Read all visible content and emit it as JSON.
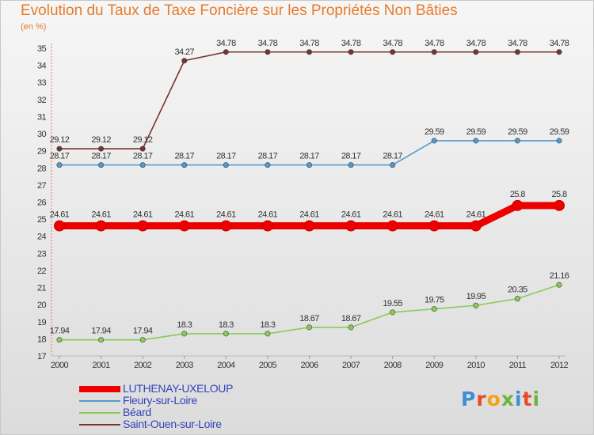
{
  "chart_data": {
    "type": "line",
    "title": "Evolution du Taux de Taxe Foncière sur les Propriétés Non Bâties",
    "ylabel": "(en %)",
    "xlabel": "",
    "categories": [
      "2000",
      "2001",
      "2002",
      "2003",
      "2004",
      "2005",
      "2006",
      "2007",
      "2008",
      "2009",
      "2010",
      "2011",
      "2012"
    ],
    "ylim": [
      17,
      35
    ],
    "yticks": [
      17,
      18,
      19,
      20,
      21,
      22,
      23,
      24,
      25,
      26,
      27,
      28,
      29,
      30,
      31,
      32,
      33,
      34,
      35
    ],
    "series": [
      {
        "name": "LUTHENAY-UXELOUP",
        "color": "#ee0000",
        "values": [
          24.61,
          24.61,
          24.61,
          24.61,
          24.61,
          24.61,
          24.61,
          24.61,
          24.61,
          24.61,
          24.61,
          25.8,
          25.8
        ],
        "labels": [
          "24.61",
          "24.61",
          "24.61",
          "24.61",
          "24.61",
          "24.61",
          "24.61",
          "24.61",
          "24.61",
          "24.61",
          "24.61",
          "25.8",
          "25.8"
        ]
      },
      {
        "name": "Fleury-sur-Loire",
        "color": "#5599cc",
        "values": [
          28.17,
          28.17,
          28.17,
          28.17,
          28.17,
          28.17,
          28.17,
          28.17,
          28.17,
          29.59,
          29.59,
          29.59,
          29.59
        ],
        "labels": [
          "28.17",
          "28.17",
          "28.17",
          "28.17",
          "28.17",
          "28.17",
          "28.17",
          "28.17",
          "28.17",
          "29.59",
          "29.59",
          "29.59",
          "29.59"
        ]
      },
      {
        "name": "Béard",
        "color": "#88cc55",
        "values": [
          17.94,
          17.94,
          17.94,
          18.3,
          18.3,
          18.3,
          18.67,
          18.67,
          19.55,
          19.75,
          19.95,
          20.35,
          21.16
        ],
        "labels": [
          "17.94",
          "17.94",
          "17.94",
          "18.3",
          "18.3",
          "18.3",
          "18.67",
          "18.67",
          "19.55",
          "19.75",
          "19.95",
          "20.35",
          "21.16"
        ]
      },
      {
        "name": "Saint-Ouen-sur-Loire",
        "color": "#773333",
        "values": [
          29.12,
          29.12,
          29.12,
          34.27,
          34.78,
          34.78,
          34.78,
          34.78,
          34.78,
          34.78,
          34.78,
          34.78,
          34.78
        ],
        "labels": [
          "29.12",
          "29.12",
          "29.12",
          "34.27",
          "34.78",
          "34.78",
          "34.78",
          "34.78",
          "34.78",
          "34.78",
          "34.78",
          "34.78",
          "34.78"
        ]
      }
    ],
    "legend_position": "bottom-left"
  },
  "branding": {
    "logo_letters": [
      "P",
      "r",
      "o",
      "x",
      "i",
      "t",
      "i"
    ],
    "logo_colors": [
      "#3f8fd1",
      "#e8492b",
      "#f5a21a",
      "#6fb33c",
      "#3f8fd1",
      "#e8492b",
      "#6fb33c"
    ]
  }
}
